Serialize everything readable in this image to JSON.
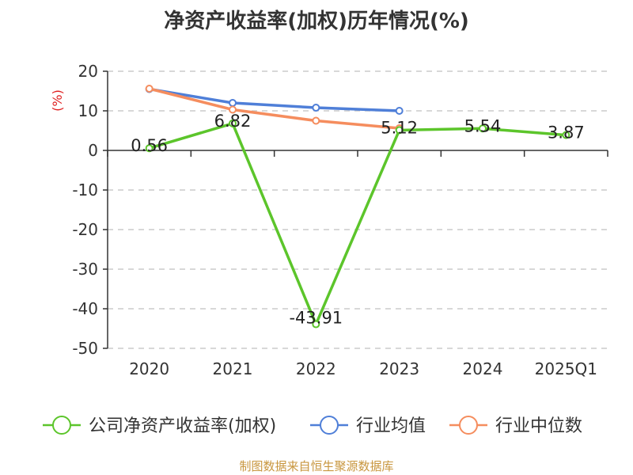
{
  "chart_data": {
    "type": "line",
    "title": "净资产收益率(加权)历年情况(%)",
    "ylabel": "(%)",
    "xlabel": "",
    "categories": [
      "2020",
      "2021",
      "2022",
      "2023",
      "2024",
      "2025Q1"
    ],
    "ylim": [
      -50,
      20
    ],
    "yticks": [
      20,
      10,
      0,
      -10,
      -20,
      -30,
      -40,
      -50
    ],
    "grid": true,
    "legend_position": "bottom",
    "series": [
      {
        "name": "公司净资产收益率(加权)",
        "color": "#5cc52b",
        "values": [
          0.56,
          6.82,
          -43.91,
          5.12,
          5.54,
          3.87
        ],
        "labels": [
          "0.56",
          "6.82",
          "-43.91",
          "5.12",
          "5.54",
          "3.87"
        ]
      },
      {
        "name": "行业均值",
        "color": "#4f7fd8",
        "values": [
          15.5,
          12.0,
          10.8,
          10.0,
          null,
          null
        ]
      },
      {
        "name": "行业中位数",
        "color": "#f58d5e",
        "values": [
          15.6,
          10.3,
          7.5,
          5.6,
          null,
          null
        ]
      }
    ]
  },
  "source_text": "制图数据来自恒生聚源数据库"
}
